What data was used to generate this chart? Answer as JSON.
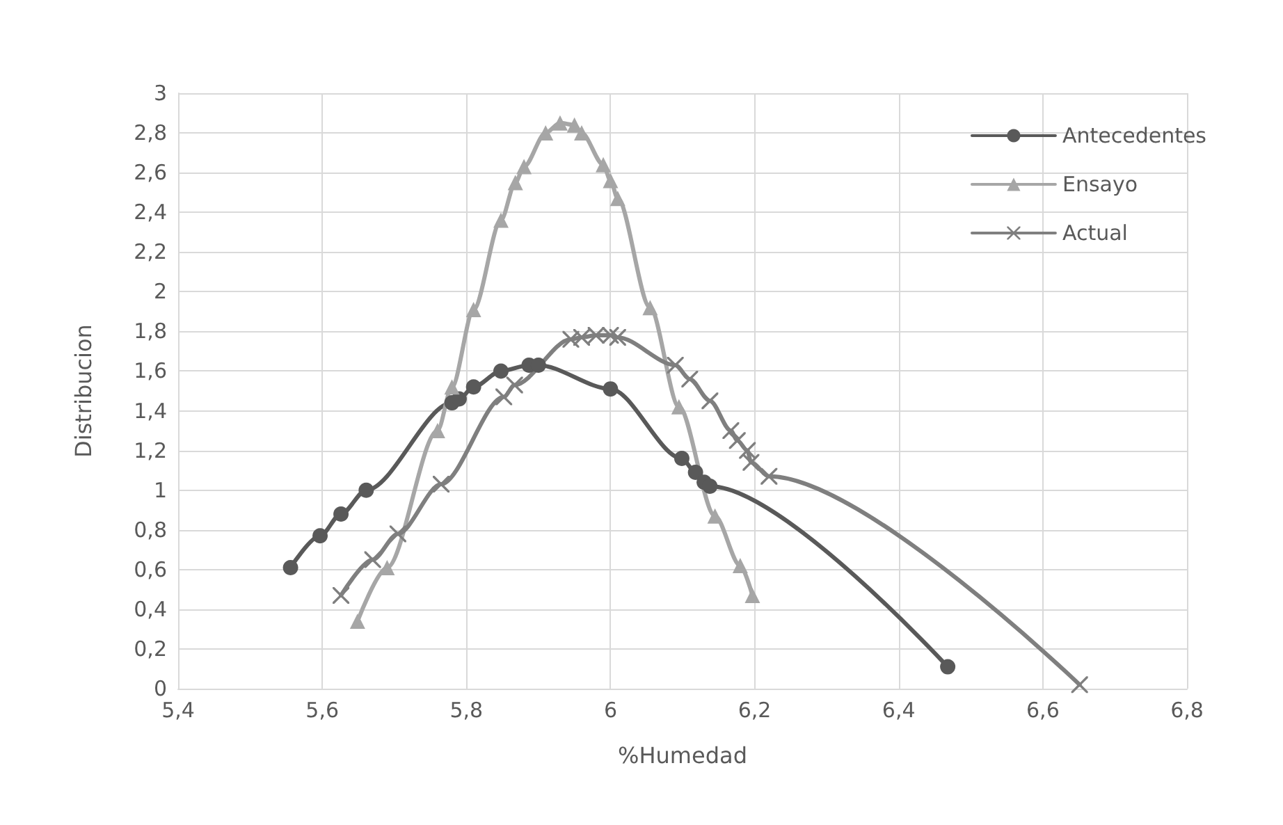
{
  "chart_data": {
    "type": "line",
    "xlabel": "%Humedad",
    "ylabel": "Distribucion",
    "xlim": [
      5.4,
      6.8
    ],
    "xticks": [
      {
        "value": 5.4,
        "label": "5,4"
      },
      {
        "value": 5.6,
        "label": "5,6"
      },
      {
        "value": 5.8,
        "label": "5,8"
      },
      6,
      {
        "value": 6.2,
        "label": "6,2"
      },
      {
        "value": 6.4,
        "label": "6,4"
      },
      {
        "value": 6.6,
        "label": "6,6"
      },
      {
        "value": 6.8,
        "label": "6,8"
      }
    ],
    "ylim": [
      0,
      3
    ],
    "yticks": [
      0,
      {
        "value": 0.2,
        "label": "0,2"
      },
      {
        "value": 0.4,
        "label": "0,4"
      },
      {
        "value": 0.6,
        "label": "0,6"
      },
      {
        "value": 0.8,
        "label": "0,8"
      },
      1,
      {
        "value": 1.2,
        "label": "1,2"
      },
      {
        "value": 1.4,
        "label": "1,4"
      },
      {
        "value": 1.6,
        "label": "1,6"
      },
      {
        "value": 1.8,
        "label": "1,8"
      },
      2,
      {
        "value": 2.2,
        "label": "2,2"
      },
      {
        "value": 2.4,
        "label": "2,4"
      },
      {
        "value": 2.6,
        "label": "2,6"
      },
      {
        "value": 2.8,
        "label": "2,8"
      },
      3
    ],
    "grid": true,
    "legend": "top right",
    "line_style": "solid",
    "series": [
      {
        "name": "Antecedentes",
        "color": "#595959",
        "marker": "circle",
        "x": [
          5.556,
          5.597,
          5.626,
          5.661,
          5.78,
          5.79,
          5.81,
          5.848,
          5.887,
          5.9,
          6.0,
          6.099,
          6.118,
          6.13,
          6.138,
          6.468
        ],
        "values": [
          0.61,
          0.77,
          0.88,
          1.0,
          1.44,
          1.46,
          1.52,
          1.6,
          1.63,
          1.63,
          1.51,
          1.16,
          1.09,
          1.04,
          1.02,
          0.11
        ]
      },
      {
        "name": "Ensayo",
        "color": "#a6a6a6",
        "marker": "triangle",
        "x": [
          5.649,
          5.69,
          5.76,
          5.78,
          5.81,
          5.848,
          5.868,
          5.88,
          5.91,
          5.93,
          5.95,
          5.96,
          5.99,
          6.0,
          6.01,
          6.055,
          6.095,
          6.145,
          6.18,
          6.197
        ],
        "values": [
          0.34,
          0.61,
          1.3,
          1.52,
          1.91,
          2.36,
          2.55,
          2.63,
          2.8,
          2.85,
          2.84,
          2.8,
          2.64,
          2.56,
          2.47,
          1.92,
          1.42,
          0.87,
          0.62,
          0.47
        ]
      },
      {
        "name": "Actual",
        "color": "#7f7f7f",
        "marker": "cross",
        "x": [
          5.626,
          5.67,
          5.705,
          5.765,
          5.852,
          5.867,
          5.945,
          5.96,
          5.98,
          6.0,
          6.01,
          6.09,
          6.11,
          6.138,
          6.167,
          6.176,
          6.19,
          6.195,
          6.22,
          6.651
        ],
        "values": [
          0.47,
          0.65,
          0.78,
          1.03,
          1.47,
          1.53,
          1.76,
          1.77,
          1.78,
          1.78,
          1.77,
          1.63,
          1.56,
          1.45,
          1.3,
          1.25,
          1.2,
          1.14,
          1.07,
          0.02
        ]
      }
    ]
  }
}
